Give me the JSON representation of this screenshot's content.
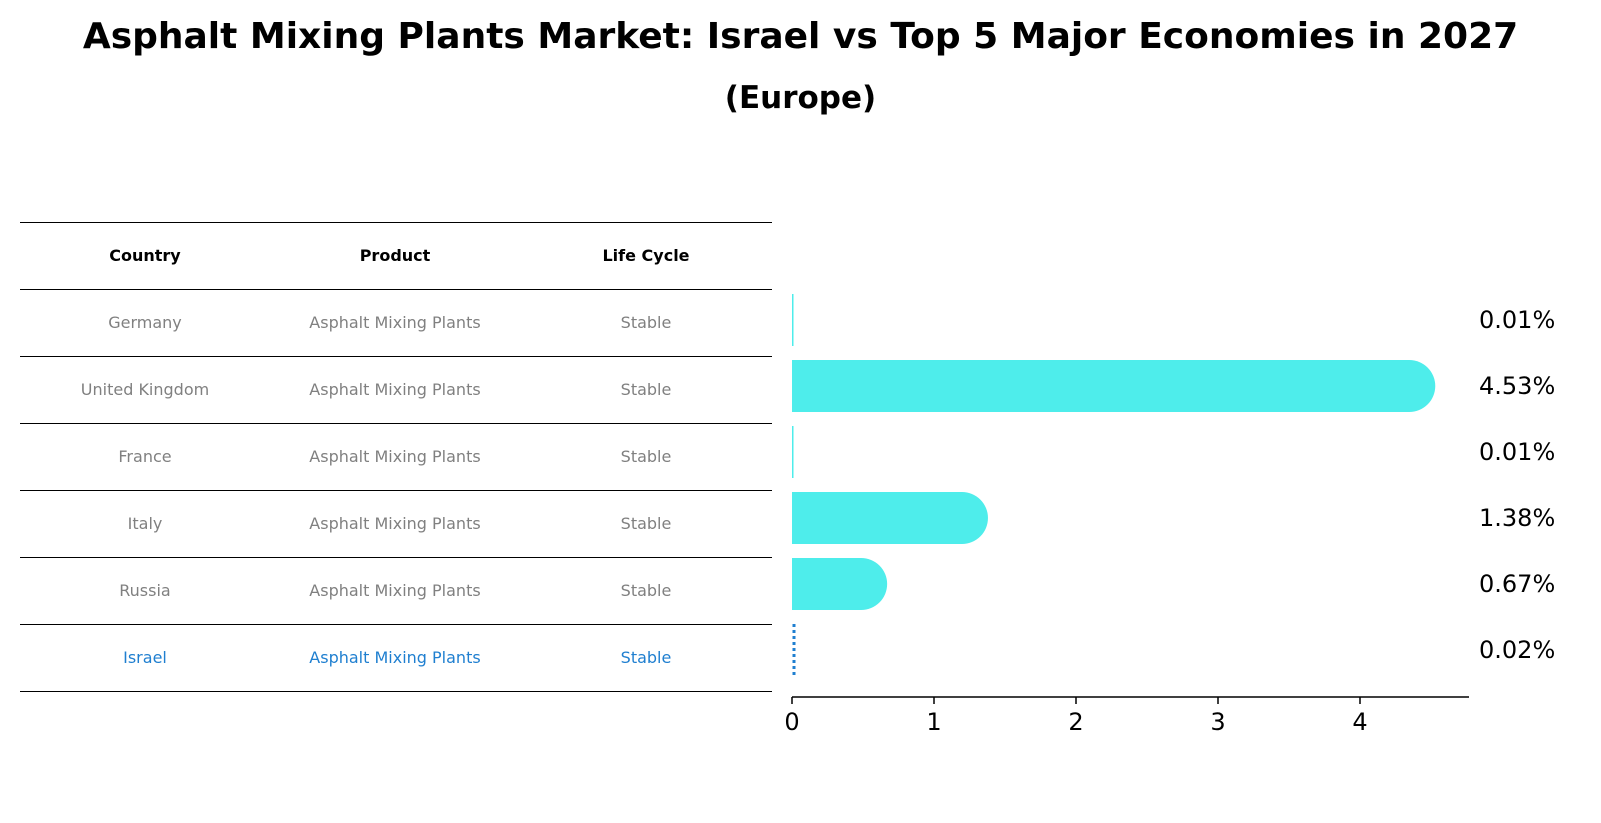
{
  "title": "Asphalt Mixing Plants Market: Israel vs Top 5 Major Economies in 2027",
  "subtitle": "(Europe)",
  "table": {
    "headers": [
      "Country",
      "Product",
      "Life Cycle"
    ],
    "rows": [
      [
        "Germany",
        "Asphalt Mixing Plants",
        "Stable"
      ],
      [
        "United Kingdom",
        "Asphalt Mixing Plants",
        "Stable"
      ],
      [
        "France",
        "Asphalt Mixing Plants",
        "Stable"
      ],
      [
        "Italy",
        "Asphalt Mixing Plants",
        "Stable"
      ],
      [
        "Russia",
        "Asphalt Mixing Plants",
        "Stable"
      ],
      [
        "Israel",
        "Asphalt Mixing Plants",
        "Stable"
      ]
    ],
    "highlight_row": 5
  },
  "colors": {
    "bar": "#4eedeb",
    "highlight": "#1f7fd0",
    "muted_text": "#808080"
  },
  "chart_data": {
    "type": "bar",
    "orientation": "horizontal",
    "categories": [
      "Germany",
      "United Kingdom",
      "France",
      "Italy",
      "Russia",
      "Israel"
    ],
    "values": [
      0.01,
      4.53,
      0.01,
      1.38,
      0.67,
      0.02
    ],
    "value_labels": [
      "0.01%",
      "4.53%",
      "0.01%",
      "1.38%",
      "0.67%",
      "0.02%"
    ],
    "xticks": [
      "0",
      "1",
      "2",
      "3",
      "4"
    ],
    "xlim": [
      0,
      4.75
    ],
    "grid": false
  }
}
